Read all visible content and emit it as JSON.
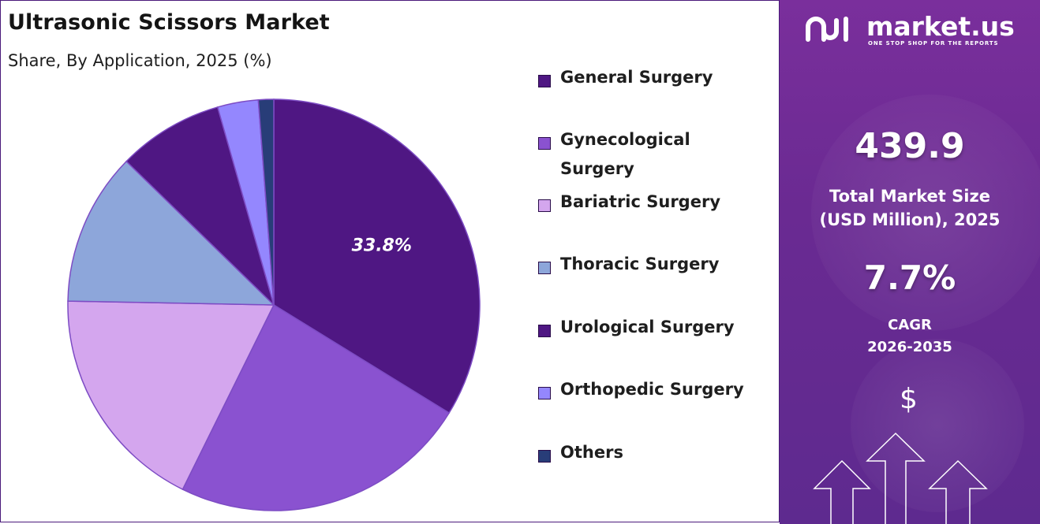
{
  "chart_data": {
    "type": "pie",
    "title": "Ultrasonic Scissors Market",
    "subtitle": "Share, By Application, 2025 (%)",
    "categories": [
      "General Surgery",
      "Gynecological Surgery",
      "Bariatric Surgery",
      "Thoracic Surgery",
      "Urological Surgery",
      "Orthopedic Surgery",
      "Others"
    ],
    "values": [
      33.8,
      23.5,
      18.0,
      12.0,
      8.3,
      3.2,
      1.2
    ],
    "colors": [
      "#4f1783",
      "#8a52d0",
      "#d4a6ee",
      "#8da6da",
      "#4f1783",
      "#9487fe",
      "#283d78"
    ],
    "data_labels": [
      {
        "category": "General Surgery",
        "text": "33.8%"
      }
    ],
    "legend_position": "right"
  },
  "sidebar": {
    "brand": "market.us",
    "tagline": "ONE STOP SHOP FOR THE REPORTS",
    "market_size_value": "439.9",
    "market_size_label_line1": "Total Market Size",
    "market_size_label_line2": "(USD Million), 2025",
    "cagr_value": "7.7%",
    "cagr_label_line1": "CAGR",
    "cagr_label_line2": "2026-2035",
    "dollar_glyph": "$",
    "colors": {
      "panel": "#6a2a92",
      "text": "#ffffff"
    }
  }
}
